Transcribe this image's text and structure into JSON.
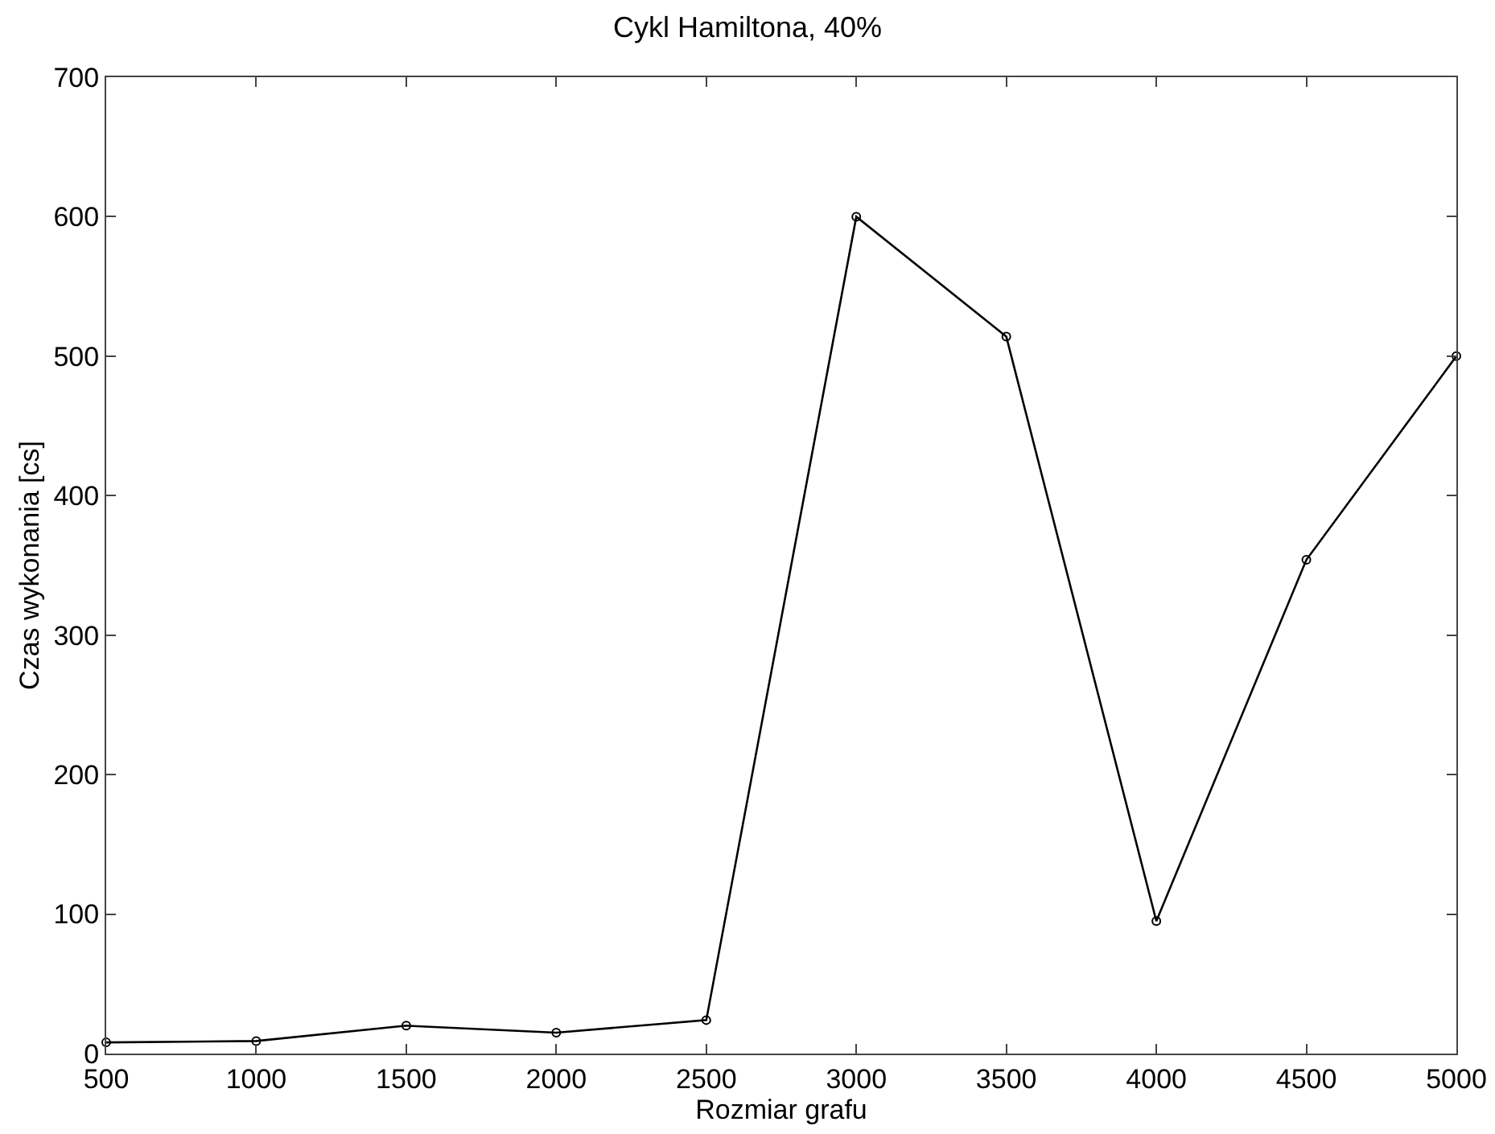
{
  "chart_data": {
    "type": "line",
    "title": "Cykl Hamiltona, 40%",
    "xlabel": "Rozmiar grafu",
    "ylabel": "Czas wykonania [cs]",
    "x": [
      500,
      1000,
      1500,
      2000,
      2500,
      3000,
      3500,
      4000,
      4500,
      5000
    ],
    "series": [
      {
        "color": "#000000",
        "values": [
          8,
          9,
          20,
          15,
          24,
          600,
          514,
          95,
          354,
          500
        ]
      }
    ],
    "xlim": [
      500,
      5000
    ],
    "xticks": [
      500,
      1000,
      1500,
      2000,
      2500,
      3000,
      3500,
      4000,
      4500,
      5000
    ],
    "ylim": [
      0,
      700
    ],
    "yticks": [
      0,
      100,
      200,
      300,
      400,
      500,
      600,
      700
    ],
    "marker": "circle",
    "line_style": "solid"
  }
}
